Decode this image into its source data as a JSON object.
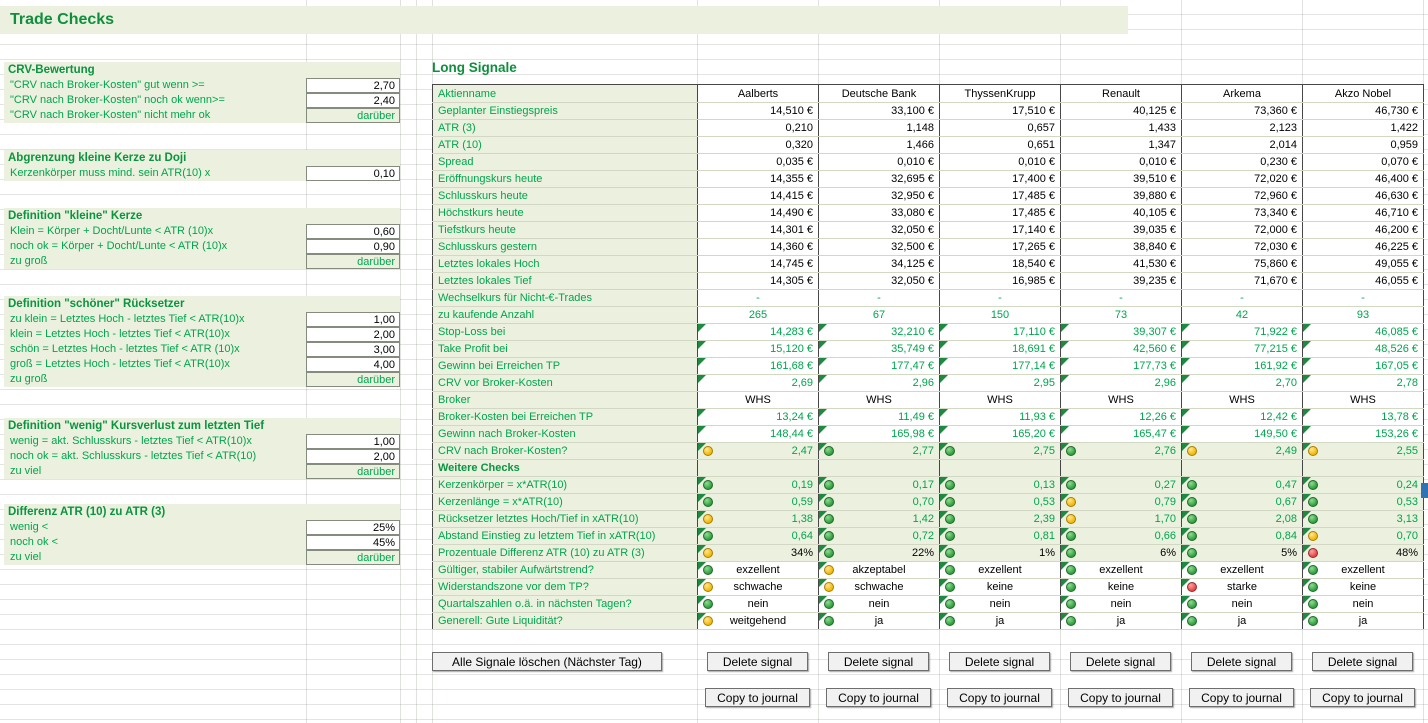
{
  "title": "Trade Checks",
  "colors": {
    "pale_green_bg": "#EBF1DE",
    "green_text": "#00A54F",
    "header_green": "#0A9440",
    "dot_green": "#2F9E3E",
    "dot_yellow": "#F2B800",
    "dot_red": "#E54545"
  },
  "left_panel": {
    "sections": [
      {
        "header": "CRV-Bewertung",
        "rows": [
          {
            "label": "\"CRV nach Broker-Kosten\" gut wenn >=",
            "value": "2,70",
            "kind": "num"
          },
          {
            "label": "\"CRV nach Broker-Kosten\" noch ok wenn>=",
            "value": "2,40",
            "kind": "num"
          },
          {
            "label": "\"CRV nach Broker-Kosten\" nicht mehr ok",
            "value": "darüber",
            "kind": "text"
          }
        ]
      },
      {
        "header": "Abgrenzung kleine Kerze zu Doji",
        "rows": [
          {
            "label": "Kerzenkörper muss mind. sein ATR(10) x",
            "value": "0,10",
            "kind": "num"
          }
        ]
      },
      {
        "header": "Definition \"kleine\" Kerze",
        "rows": [
          {
            "label": "Klein = Körper + Docht/Lunte < ATR (10)x",
            "value": "0,60",
            "kind": "num"
          },
          {
            "label": "noch ok = Körper + Docht/Lunte < ATR (10)x",
            "value": "0,90",
            "kind": "num"
          },
          {
            "label": "zu groß",
            "value": "darüber",
            "kind": "text"
          }
        ]
      },
      {
        "header": "Definition \"schöner\" Rücksetzer",
        "rows": [
          {
            "label": "zu klein = Letztes Hoch - letztes Tief < ATR(10)x",
            "value": "1,00",
            "kind": "num"
          },
          {
            "label": "klein = Letztes Hoch - letztes Tief < ATR(10)x",
            "value": "2,00",
            "kind": "num"
          },
          {
            "label": "schön = Letztes Hoch - letztes Tief < ATR (10)x",
            "value": "3,00",
            "kind": "num"
          },
          {
            "label": "groß = Letztes Hoch - letztes Tief < ATR(10)x",
            "value": "4,00",
            "kind": "num"
          },
          {
            "label": "zu groß",
            "value": "darüber",
            "kind": "text"
          }
        ]
      },
      {
        "header": "Definition \"wenig\" Kursverlust zum letzten Tief",
        "rows": [
          {
            "label": "wenig = akt. Schlusskurs - letztes Tief < ATR(10)x",
            "value": "1,00",
            "kind": "num"
          },
          {
            "label": "noch ok = akt. Schlusskurs - letztes Tief < ATR(10)",
            "value": "2,00",
            "kind": "num"
          },
          {
            "label": "zu viel",
            "value": "darüber",
            "kind": "text"
          }
        ]
      },
      {
        "header": "Differenz ATR (10) zu ATR (3)",
        "rows": [
          {
            "label": "wenig <",
            "value": "25%",
            "kind": "num"
          },
          {
            "label": "noch ok <",
            "value": "45%",
            "kind": "num"
          },
          {
            "label": "zu viel",
            "value": "darüber",
            "kind": "text"
          }
        ]
      }
    ]
  },
  "signals": {
    "title": "Long Signale",
    "header_label": "Aktienname",
    "stocks": [
      "Aalberts",
      "Deutsche Bank",
      "ThyssenKrupp",
      "Renault",
      "Arkema",
      "Akzo Nobel"
    ],
    "rows": [
      {
        "label": "Geplanter Einstiegspreis",
        "style": "num-black",
        "values": [
          "14,510 €",
          "33,100 €",
          "17,510 €",
          "40,125 €",
          "73,360 €",
          "46,730 €"
        ]
      },
      {
        "label": "ATR (3)",
        "style": "num-black",
        "values": [
          "0,210",
          "1,148",
          "0,657",
          "1,433",
          "2,123",
          "1,422"
        ]
      },
      {
        "label": "ATR (10)",
        "style": "num-black",
        "values": [
          "0,320",
          "1,466",
          "0,651",
          "1,347",
          "2,014",
          "0,959"
        ]
      },
      {
        "label": "Spread",
        "style": "num-black",
        "values": [
          "0,035 €",
          "0,010 €",
          "0,010 €",
          "0,010 €",
          "0,230 €",
          "0,070 €"
        ]
      },
      {
        "label": "Eröffnungskurs heute",
        "style": "num-black",
        "values": [
          "14,355 €",
          "32,695 €",
          "17,400 €",
          "39,510 €",
          "72,020 €",
          "46,400 €"
        ]
      },
      {
        "label": "Schlusskurs heute",
        "style": "num-black",
        "values": [
          "14,415 €",
          "32,950 €",
          "17,485 €",
          "39,880 €",
          "72,960 €",
          "46,630 €"
        ]
      },
      {
        "label": "Höchstkurs heute",
        "style": "num-black",
        "values": [
          "14,490 €",
          "33,080 €",
          "17,485 €",
          "40,105 €",
          "73,340 €",
          "46,710 €"
        ]
      },
      {
        "label": "Tiefstkurs heute",
        "style": "num-black",
        "values": [
          "14,301 €",
          "32,050 €",
          "17,140 €",
          "39,035 €",
          "72,000 €",
          "46,200 €"
        ]
      },
      {
        "label": "Schlusskurs gestern",
        "style": "num-black",
        "values": [
          "14,360 €",
          "32,500 €",
          "17,265 €",
          "38,840 €",
          "72,030 €",
          "46,225 €"
        ]
      },
      {
        "label": "Letztes lokales Hoch",
        "style": "num-black",
        "values": [
          "14,745 €",
          "34,125 €",
          "18,540 €",
          "41,530 €",
          "75,860 €",
          "49,055 €"
        ]
      },
      {
        "label": "Letztes lokales Tief",
        "style": "num-black",
        "values": [
          "14,305 €",
          "32,050 €",
          "16,985 €",
          "39,235 €",
          "71,670 €",
          "46,055 €"
        ]
      },
      {
        "label": "Wechselkurs für Nicht-€-Trades",
        "style": "center-green",
        "values": [
          "-",
          "-",
          "-",
          "-",
          "-",
          "-"
        ]
      },
      {
        "label": "zu kaufende Anzahl",
        "style": "center-green",
        "values": [
          "265",
          "67",
          "150",
          "73",
          "42",
          "93"
        ]
      },
      {
        "label": "Stop-Loss bei",
        "style": "num-green",
        "corner": true,
        "values": [
          "14,283 €",
          "32,210 €",
          "17,110 €",
          "39,307 €",
          "71,922 €",
          "46,085 €"
        ]
      },
      {
        "label": "Take Profit bei",
        "style": "num-green",
        "corner": true,
        "values": [
          "15,120 €",
          "35,749 €",
          "18,691 €",
          "42,560 €",
          "77,215 €",
          "48,526 €"
        ]
      },
      {
        "label": "Gewinn bei Erreichen TP",
        "style": "num-green",
        "corner": true,
        "values": [
          "161,68 €",
          "177,47 €",
          "177,14 €",
          "177,73 €",
          "161,92 €",
          "167,05 €"
        ]
      },
      {
        "label": "CRV vor Broker-Kosten",
        "style": "num-green",
        "corner": true,
        "values": [
          "2,69",
          "2,96",
          "2,95",
          "2,96",
          "2,70",
          "2,78"
        ]
      },
      {
        "label": "Broker",
        "style": "center-black",
        "values": [
          "WHS",
          "WHS",
          "WHS",
          "WHS",
          "WHS",
          "WHS"
        ]
      },
      {
        "label": "Broker-Kosten bei Erreichen TP",
        "style": "num-green",
        "corner": true,
        "values": [
          "13,24 €",
          "11,49 €",
          "11,93 €",
          "12,26 €",
          "12,42 €",
          "13,78 €"
        ]
      },
      {
        "label": "Gewinn nach Broker-Kosten",
        "style": "num-green",
        "corner": true,
        "values": [
          "148,44 €",
          "165,98 €",
          "165,20 €",
          "165,47 €",
          "149,50 €",
          "153,26 €"
        ]
      },
      {
        "label": "CRV nach Broker-Kosten?",
        "style": "check-num",
        "corner": true,
        "dots": [
          "y",
          "g",
          "g",
          "g",
          "y",
          "y"
        ],
        "values": [
          "2,47",
          "2,77",
          "2,75",
          "2,76",
          "2,49",
          "2,55"
        ]
      },
      {
        "type": "section",
        "label": "Weitere Checks"
      },
      {
        "label": "Kerzenkörper = x*ATR(10)",
        "style": "check-num",
        "corner": true,
        "dots": [
          "g",
          "g",
          "g",
          "g",
          "g",
          "g"
        ],
        "values": [
          "0,19",
          "0,17",
          "0,13",
          "0,27",
          "0,47",
          "0,24"
        ]
      },
      {
        "label": "Kerzenlänge = x*ATR(10)",
        "style": "check-num",
        "corner": true,
        "dots": [
          "g",
          "g",
          "g",
          "y",
          "g",
          "g"
        ],
        "values": [
          "0,59",
          "0,70",
          "0,53",
          "0,79",
          "0,67",
          "0,53"
        ]
      },
      {
        "label": "Rücksetzer letztes Hoch/Tief in xATR(10)",
        "style": "check-num",
        "corner": true,
        "dots": [
          "y",
          "g",
          "g",
          "y",
          "g",
          "g"
        ],
        "values": [
          "1,38",
          "1,42",
          "2,39",
          "1,70",
          "2,08",
          "3,13"
        ]
      },
      {
        "label": "Abstand Einstieg zu letztem Tief in xATR(10)",
        "style": "check-num",
        "corner": true,
        "dots": [
          "g",
          "g",
          "g",
          "g",
          "g",
          "y"
        ],
        "values": [
          "0,64",
          "0,72",
          "0,81",
          "0,66",
          "0,84",
          "0,70"
        ]
      },
      {
        "label": "Prozentuale Differenz ATR (10) zu ATR (3)",
        "style": "check-pct",
        "corner": true,
        "dots": [
          "y",
          "g",
          "g",
          "g",
          "g",
          "r"
        ],
        "values": [
          "34%",
          "22%",
          "1%",
          "6%",
          "5%",
          "48%"
        ]
      },
      {
        "label": "Gültiger, stabiler Aufwärtstrend?",
        "style": "check-text",
        "corner": true,
        "dots": [
          "g",
          "y",
          "g",
          "g",
          "g",
          "g"
        ],
        "values": [
          "exzellent",
          "akzeptabel",
          "exzellent",
          "exzellent",
          "exzellent",
          "exzellent"
        ]
      },
      {
        "label": "Widerstandszone vor dem TP?",
        "style": "check-text",
        "corner": true,
        "dots": [
          "y",
          "y",
          "g",
          "g",
          "r",
          "g"
        ],
        "values": [
          "schwache",
          "schwache",
          "keine",
          "keine",
          "starke",
          "keine"
        ]
      },
      {
        "label": "Quartalszahlen o.ä. in nächsten Tagen?",
        "style": "check-text",
        "corner": true,
        "dots": [
          "g",
          "g",
          "g",
          "g",
          "g",
          "g"
        ],
        "values": [
          "nein",
          "nein",
          "nein",
          "nein",
          "nein",
          "nein"
        ]
      },
      {
        "label": "Generell: Gute Liquidität?",
        "style": "check-text",
        "corner": true,
        "dots": [
          "y",
          "g",
          "g",
          "g",
          "g",
          "g"
        ],
        "values": [
          "weitgehend",
          "ja",
          "ja",
          "ja",
          "ja",
          "ja"
        ]
      }
    ],
    "buttons": {
      "clear_all": "Alle Signale löschen (Nächster Tag)",
      "delete_signal": "Delete signal",
      "copy_to_journal": "Copy to journal"
    }
  }
}
